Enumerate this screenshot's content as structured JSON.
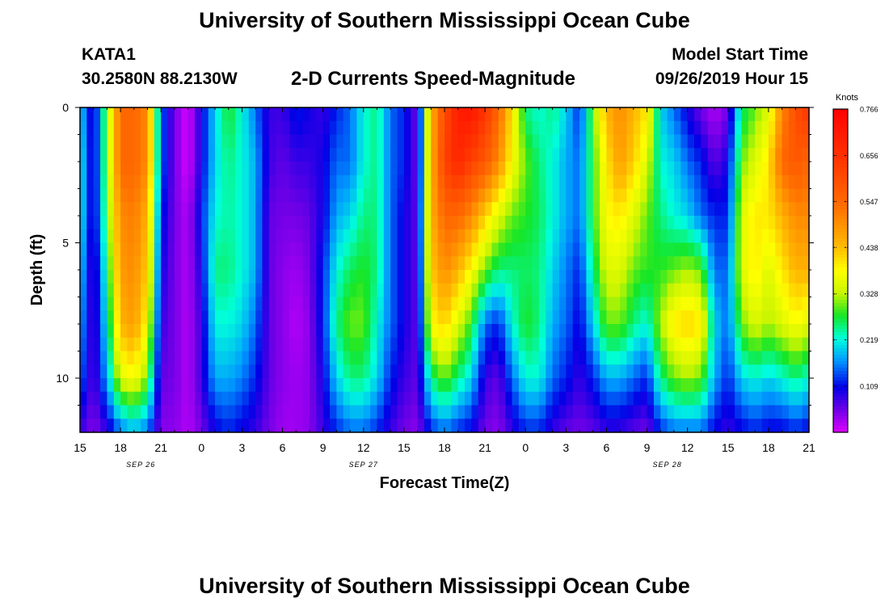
{
  "title_top": "University of Southern Mississippi Ocean Cube",
  "title_bottom": "University of Southern Mississippi Ocean Cube",
  "station": {
    "id": "KATA1",
    "coords": "30.2580N 88.2130W"
  },
  "plot_title": "2-D Currents Speed-Magnitude",
  "model": {
    "label": "Model Start Time",
    "value": "09/26/2019 Hour 15"
  },
  "colors": {
    "background": "#ffffff",
    "axes": "#000000"
  },
  "chart_data": {
    "type": "heatmap",
    "xlabel": "Forecast Time(Z)",
    "ylabel": "Depth (ft)",
    "x_ticks": [
      "15",
      "18",
      "21",
      "0",
      "3",
      "6",
      "9",
      "12",
      "15",
      "18",
      "21",
      "0",
      "3",
      "6",
      "9",
      "12",
      "15",
      "18",
      "21"
    ],
    "x_range_hours": [
      0,
      54
    ],
    "date_labels": [
      {
        "label": "SEP 26",
        "at_hour": 4.5
      },
      {
        "label": "SEP 27",
        "at_hour": 21
      },
      {
        "label": "SEP 28",
        "at_hour": 43.5
      }
    ],
    "y_ticks": [
      0,
      5,
      10
    ],
    "ylim": [
      0,
      12
    ],
    "y_inverted": true,
    "colorbar": {
      "unit": "Knots",
      "min": 0,
      "max": 0.766,
      "ticks": [
        0.109,
        0.219,
        0.328,
        0.438,
        0.547,
        0.656,
        0.766
      ]
    },
    "time_hours": [
      0,
      1,
      2,
      3,
      4,
      5,
      6,
      7,
      8,
      9,
      10,
      11,
      12,
      13,
      14,
      15,
      16,
      17,
      18,
      19,
      20,
      21,
      22,
      23,
      24,
      25,
      26,
      27,
      28,
      29,
      30,
      31,
      32,
      33,
      34,
      35,
      36,
      37,
      38,
      39,
      40,
      41,
      42,
      43,
      44,
      45,
      46,
      47,
      48,
      49,
      50,
      51,
      52,
      53,
      54
    ],
    "depth_ft": [
      0,
      2,
      4,
      6,
      8,
      10,
      12
    ],
    "speed_knots": [
      [
        0.2,
        0.08,
        0.3,
        0.55,
        0.55,
        0.5,
        0.15,
        0.05,
        0.0,
        0.1,
        0.2,
        0.28,
        0.22,
        0.15,
        0.08,
        0.08,
        0.12,
        0.1,
        0.08,
        0.12,
        0.15,
        0.22,
        0.25,
        0.15,
        0.12,
        0.05,
        0.45,
        0.6,
        0.7,
        0.72,
        0.65,
        0.55,
        0.4,
        0.25,
        0.22,
        0.25,
        0.2,
        0.12,
        0.3,
        0.45,
        0.5,
        0.45,
        0.4,
        0.2,
        0.15,
        0.1,
        0.05,
        0.02,
        0.05,
        0.25,
        0.3,
        0.35,
        0.5,
        0.6,
        0.65
      ],
      [
        0.22,
        0.08,
        0.3,
        0.55,
        0.55,
        0.5,
        0.15,
        0.05,
        0.0,
        0.1,
        0.2,
        0.25,
        0.22,
        0.18,
        0.08,
        0.06,
        0.08,
        0.08,
        0.1,
        0.15,
        0.15,
        0.22,
        0.25,
        0.15,
        0.12,
        0.05,
        0.45,
        0.62,
        0.68,
        0.62,
        0.58,
        0.5,
        0.38,
        0.3,
        0.25,
        0.22,
        0.18,
        0.15,
        0.28,
        0.4,
        0.48,
        0.42,
        0.35,
        0.22,
        0.2,
        0.15,
        0.12,
        0.06,
        0.1,
        0.3,
        0.35,
        0.4,
        0.55,
        0.58,
        0.55
      ],
      [
        0.22,
        0.08,
        0.28,
        0.5,
        0.52,
        0.45,
        0.12,
        0.05,
        0.02,
        0.12,
        0.22,
        0.24,
        0.22,
        0.18,
        0.06,
        0.05,
        0.05,
        0.06,
        0.1,
        0.18,
        0.2,
        0.25,
        0.25,
        0.15,
        0.1,
        0.06,
        0.45,
        0.55,
        0.55,
        0.5,
        0.42,
        0.35,
        0.3,
        0.28,
        0.26,
        0.22,
        0.18,
        0.15,
        0.28,
        0.38,
        0.4,
        0.35,
        0.3,
        0.25,
        0.22,
        0.2,
        0.15,
        0.12,
        0.12,
        0.35,
        0.4,
        0.4,
        0.45,
        0.5,
        0.5
      ],
      [
        0.2,
        0.06,
        0.25,
        0.48,
        0.5,
        0.42,
        0.1,
        0.05,
        0.02,
        0.1,
        0.25,
        0.25,
        0.22,
        0.18,
        0.06,
        0.04,
        0.03,
        0.05,
        0.12,
        0.22,
        0.26,
        0.28,
        0.25,
        0.15,
        0.1,
        0.06,
        0.42,
        0.5,
        0.45,
        0.38,
        0.3,
        0.25,
        0.25,
        0.26,
        0.25,
        0.2,
        0.16,
        0.12,
        0.25,
        0.35,
        0.35,
        0.3,
        0.28,
        0.28,
        0.3,
        0.32,
        0.3,
        0.15,
        0.15,
        0.35,
        0.4,
        0.35,
        0.4,
        0.45,
        0.45
      ],
      [
        0.18,
        0.06,
        0.22,
        0.45,
        0.48,
        0.38,
        0.08,
        0.05,
        0.02,
        0.08,
        0.22,
        0.22,
        0.2,
        0.15,
        0.06,
        0.04,
        0.02,
        0.04,
        0.12,
        0.25,
        0.3,
        0.3,
        0.22,
        0.15,
        0.1,
        0.06,
        0.38,
        0.42,
        0.35,
        0.28,
        0.15,
        0.12,
        0.22,
        0.28,
        0.25,
        0.18,
        0.15,
        0.1,
        0.2,
        0.3,
        0.3,
        0.25,
        0.22,
        0.32,
        0.4,
        0.42,
        0.4,
        0.2,
        0.15,
        0.3,
        0.35,
        0.32,
        0.35,
        0.38,
        0.35
      ],
      [
        0.15,
        0.06,
        0.18,
        0.35,
        0.38,
        0.3,
        0.06,
        0.05,
        0.02,
        0.08,
        0.18,
        0.18,
        0.16,
        0.12,
        0.06,
        0.04,
        0.03,
        0.04,
        0.1,
        0.2,
        0.25,
        0.25,
        0.2,
        0.12,
        0.08,
        0.06,
        0.25,
        0.3,
        0.25,
        0.2,
        0.08,
        0.06,
        0.15,
        0.22,
        0.22,
        0.15,
        0.12,
        0.08,
        0.12,
        0.18,
        0.18,
        0.15,
        0.12,
        0.25,
        0.3,
        0.32,
        0.3,
        0.18,
        0.12,
        0.2,
        0.22,
        0.2,
        0.22,
        0.25,
        0.22
      ],
      [
        0.08,
        0.04,
        0.08,
        0.15,
        0.18,
        0.15,
        0.04,
        0.04,
        0.02,
        0.05,
        0.1,
        0.12,
        0.1,
        0.08,
        0.05,
        0.03,
        0.03,
        0.04,
        0.08,
        0.12,
        0.15,
        0.15,
        0.12,
        0.08,
        0.05,
        0.04,
        0.12,
        0.15,
        0.12,
        0.1,
        0.05,
        0.04,
        0.08,
        0.12,
        0.12,
        0.08,
        0.06,
        0.05,
        0.06,
        0.08,
        0.08,
        0.06,
        0.05,
        0.12,
        0.15,
        0.15,
        0.15,
        0.1,
        0.08,
        0.1,
        0.12,
        0.1,
        0.1,
        0.12,
        0.1
      ]
    ]
  }
}
